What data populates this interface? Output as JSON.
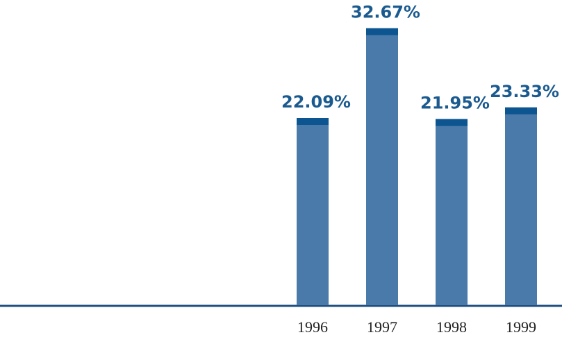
{
  "chart_data": {
    "type": "bar",
    "categories": [
      null,
      null,
      null,
      null,
      "1996",
      "1997",
      "1998",
      "1999"
    ],
    "values": [
      null,
      null,
      null,
      null,
      22.09,
      32.67,
      21.95,
      23.33
    ],
    "value_labels": [
      null,
      null,
      null,
      null,
      "22.09%",
      "32.67%",
      "21.95%",
      "23.33%"
    ],
    "color": "#4a7aaa",
    "ylim": [
      0,
      36
    ]
  }
}
